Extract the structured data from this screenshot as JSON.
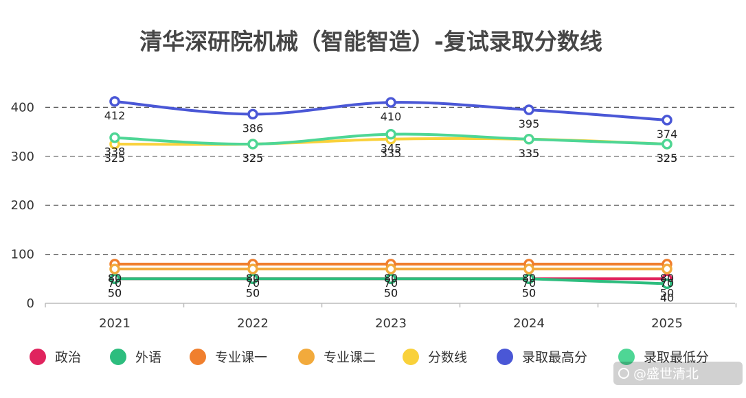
{
  "chart_data": {
    "type": "line",
    "title": "清华深研院机械（智能智造）-复试录取分数线",
    "categories": [
      "2021",
      "2022",
      "2023",
      "2024",
      "2025"
    ],
    "ylim": [
      0,
      400
    ],
    "yticks": [
      0,
      100,
      200,
      300,
      400
    ],
    "grid": "horizontal dashed",
    "legend_position": "bottom",
    "series": [
      {
        "name": "政治",
        "color": "#e0245e",
        "values": [
          50,
          50,
          50,
          50,
          50
        ]
      },
      {
        "name": "外语",
        "color": "#2dbd7e",
        "values": [
          50,
          50,
          50,
          50,
          40
        ]
      },
      {
        "name": "专业课一",
        "color": "#f07f2e",
        "values": [
          80,
          80,
          80,
          80,
          80
        ]
      },
      {
        "name": "专业课二",
        "color": "#f2aa3c",
        "values": [
          70,
          70,
          70,
          70,
          70
        ]
      },
      {
        "name": "分数线",
        "color": "#f9d13a",
        "values": [
          325,
          325,
          335,
          335,
          325
        ]
      },
      {
        "name": "录取最高分",
        "color": "#4a57d6",
        "values": [
          412,
          386,
          410,
          395,
          374
        ]
      },
      {
        "name": "录取最低分",
        "color": "#4ed695",
        "values": [
          338,
          325,
          345,
          335,
          325
        ]
      }
    ]
  },
  "watermark": "@盛世清北"
}
